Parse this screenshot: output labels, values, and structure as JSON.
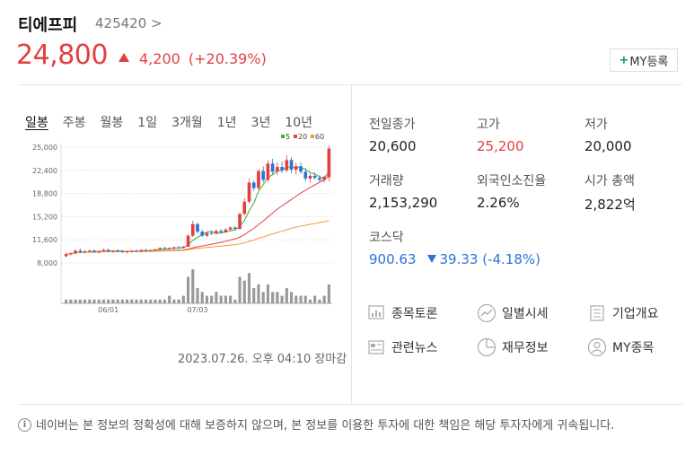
{
  "stock": {
    "name": "티에프피",
    "code": "425420 >",
    "price": "24,800",
    "change": "4,200",
    "change_pct": "(+20.39%)",
    "my_button": "MY등록"
  },
  "tabs": [
    {
      "label": "일봉",
      "active": true
    },
    {
      "label": "주봉"
    },
    {
      "label": "월봉"
    },
    {
      "label": "1일"
    },
    {
      "label": "3개월"
    },
    {
      "label": "1년"
    },
    {
      "label": "3년"
    },
    {
      "label": "10년"
    }
  ],
  "chart_data": {
    "type": "candlestick",
    "y_ticks": [
      "25,000",
      "22,400",
      "18,800",
      "15,200",
      "11,600",
      "8,000"
    ],
    "x_ticks": [
      "06/01",
      "07/03"
    ],
    "legend": [
      {
        "label": "5",
        "color": "#2fb62f"
      },
      {
        "label": "20",
        "color": "#e53f3f"
      },
      {
        "label": "60",
        "color": "#f09a3c"
      }
    ],
    "ylim": [
      8000,
      25000
    ],
    "candles": [
      [
        9000,
        9500,
        8800,
        9300
      ],
      [
        9300,
        9600,
        9100,
        9400
      ],
      [
        9400,
        10000,
        9300,
        9800
      ],
      [
        9800,
        10100,
        9400,
        9600
      ],
      [
        9600,
        9900,
        9400,
        9700
      ],
      [
        9700,
        10000,
        9500,
        9800
      ],
      [
        9800,
        10000,
        9500,
        9600
      ],
      [
        9600,
        9800,
        9400,
        9700
      ],
      [
        9700,
        10100,
        9600,
        9900
      ],
      [
        9900,
        10100,
        9600,
        9700
      ],
      [
        9700,
        9900,
        9500,
        9800
      ],
      [
        9800,
        10000,
        9600,
        9700
      ],
      [
        9700,
        9900,
        9500,
        9600
      ],
      [
        9600,
        9800,
        9400,
        9700
      ],
      [
        9700,
        9900,
        9500,
        9800
      ],
      [
        9800,
        10000,
        9600,
        9700
      ],
      [
        9700,
        10000,
        9600,
        9900
      ],
      [
        9900,
        10100,
        9700,
        9800
      ],
      [
        9800,
        10000,
        9600,
        9900
      ],
      [
        9900,
        10100,
        9700,
        10000
      ],
      [
        10000,
        10300,
        9900,
        10200
      ],
      [
        10200,
        10400,
        10000,
        10100
      ],
      [
        10100,
        10300,
        9900,
        10200
      ],
      [
        10200,
        10400,
        10000,
        10300
      ],
      [
        10300,
        10500,
        10100,
        10200
      ],
      [
        10200,
        10500,
        10100,
        10400
      ],
      [
        10400,
        12200,
        10300,
        12000
      ],
      [
        12000,
        14200,
        11800,
        13700
      ],
      [
        13700,
        13900,
        12300,
        12600
      ],
      [
        12600,
        12900,
        11800,
        12000
      ],
      [
        12000,
        12600,
        11800,
        12400
      ],
      [
        12400,
        12800,
        12100,
        12300
      ],
      [
        12300,
        12900,
        12200,
        12700
      ],
      [
        12700,
        13000,
        12400,
        12500
      ],
      [
        12500,
        13100,
        12400,
        12900
      ],
      [
        12900,
        13400,
        12700,
        13200
      ],
      [
        13200,
        13400,
        12800,
        13000
      ],
      [
        13000,
        15400,
        12900,
        15200
      ],
      [
        15200,
        17500,
        15000,
        17000
      ],
      [
        17000,
        20400,
        16800,
        19800
      ],
      [
        19800,
        20100,
        18600,
        19000
      ],
      [
        19000,
        21800,
        18700,
        21500
      ],
      [
        21500,
        22200,
        19800,
        20200
      ],
      [
        20200,
        23000,
        19900,
        22600
      ],
      [
        22600,
        23300,
        21000,
        21400
      ],
      [
        21400,
        22800,
        20900,
        22100
      ],
      [
        22100,
        22900,
        21200,
        21600
      ],
      [
        21600,
        23800,
        21300,
        23100
      ],
      [
        23100,
        23500,
        21200,
        21700
      ],
      [
        21700,
        22700,
        21000,
        22200
      ],
      [
        22200,
        22800,
        21100,
        21400
      ],
      [
        21400,
        21900,
        20000,
        20400
      ],
      [
        20400,
        21200,
        19800,
        20800
      ],
      [
        20800,
        21300,
        20200,
        20500
      ],
      [
        20500,
        20900,
        19900,
        20200
      ],
      [
        20200,
        20800,
        19800,
        20600
      ],
      [
        20600,
        25200,
        20000,
        24800
      ]
    ],
    "volume": [
      1,
      1,
      1,
      1,
      1,
      1,
      1,
      1,
      1,
      1,
      1,
      1,
      1,
      1,
      1,
      1,
      1,
      1,
      1,
      1,
      1,
      1,
      2,
      1,
      1,
      2,
      7,
      9,
      4,
      3,
      2,
      2,
      3,
      2,
      2,
      2,
      1,
      7,
      6,
      8,
      4,
      5,
      3,
      5,
      3,
      3,
      2,
      4,
      3,
      2,
      2,
      2,
      1,
      2,
      1,
      2,
      5
    ]
  },
  "timestamp": "2023.07.26. 오후 04:10 장마감",
  "info": {
    "prev_close_label": "전일종가",
    "prev_close": "20,600",
    "high_label": "고가",
    "high": "25,200",
    "low_label": "저가",
    "low": "20,000",
    "volume_label": "거래량",
    "volume": "2,153,290",
    "foreign_label": "외국인소진율",
    "foreign": "2.26%",
    "mcap_label": "시가 총액",
    "mcap": "2,822",
    "mcap_unit": "억",
    "kosdaq_label": "코스닥",
    "kosdaq_value": "900.63",
    "kosdaq_change": "39.33 (-4.18%)"
  },
  "links": {
    "discussion": "종목토론",
    "daily": "일별시세",
    "company": "기업개요",
    "news": "관련뉴스",
    "finance": "재무정보",
    "my_stock": "MY종목"
  },
  "disclaimer": "네이버는 본 정보의 정확성에 대해 보증하지 않으며, 본 정보를 이용한 투자에 대한 책임은 해당 투자자에게 귀속됩니다.",
  "colors": {
    "up": "#e53f3f",
    "down": "#2b74d8",
    "accent": "#00a44a"
  }
}
